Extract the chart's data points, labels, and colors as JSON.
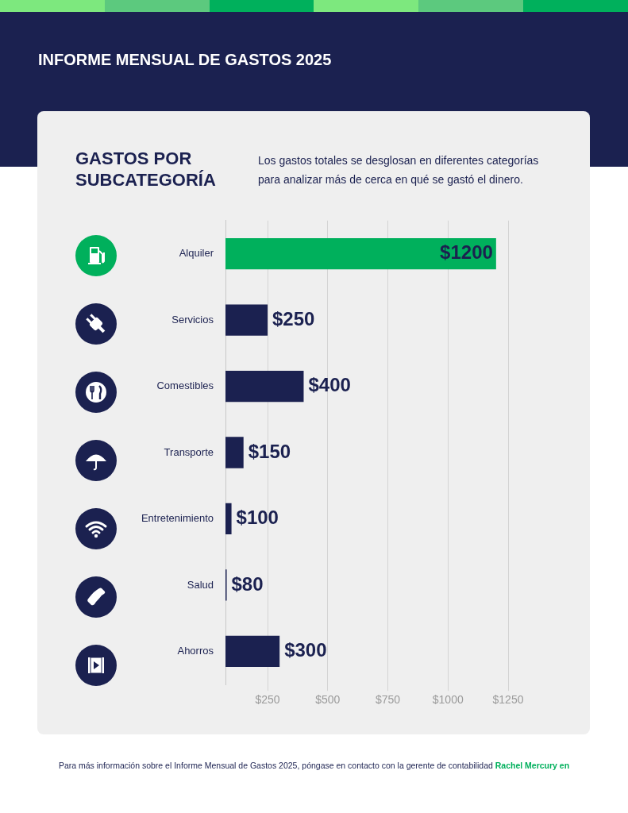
{
  "chart_data": {
    "type": "bar",
    "orientation": "horizontal",
    "title": "INFORME MENSUAL DE GASTOS 2025",
    "subtitle": "GASTOS POR SUBCATEGORÍA",
    "categories": [
      "Alquiler",
      "Servicios",
      "Comestibles",
      "Transporte",
      "Entretenimiento",
      "Salud",
      "Ahorros"
    ],
    "values": [
      1200,
      250,
      400,
      150,
      100,
      80,
      300
    ],
    "colors": [
      "#00b05c",
      "#1b2150",
      "#1b2150",
      "#1b2150",
      "#1b2150",
      "#1b2150",
      "#1b2150"
    ],
    "value_labels": [
      "$1200",
      "$250",
      "$400",
      "$150",
      "$100",
      "$80",
      "$300"
    ],
    "xlim": [
      75,
      1250
    ],
    "xticks": [
      {
        "value": 250,
        "label": "$250"
      },
      {
        "value": 500,
        "label": "$500"
      },
      {
        "value": 750,
        "label": "$750"
      },
      {
        "value": 1000,
        "label": "$1000"
      },
      {
        "value": 1250,
        "label": "$1250"
      }
    ],
    "grid": "x",
    "legend": false,
    "annotations": [
      "Los gastos totales se desglosan en diferentes categorías para analizar más de cerca en qué se gastó el dinero.",
      "Para más información sobre el Informe Mensual de Gastos 2025, póngase en contacto con la gerente de contabilidad",
      "Rachel Mercury en"
    ]
  }
}
